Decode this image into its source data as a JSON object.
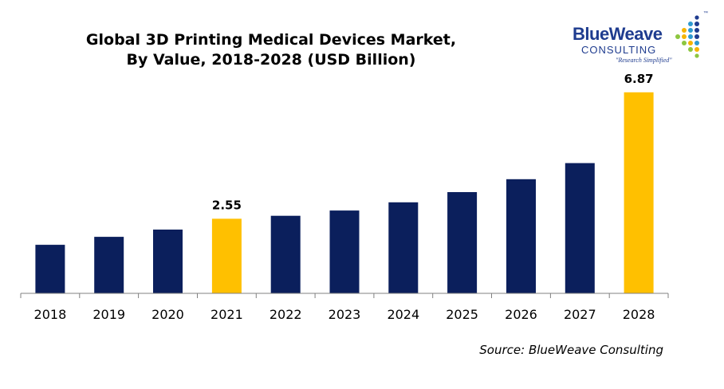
{
  "title_line1": "Global 3D Printing Medical Devices Market,",
  "title_line2": "By Value, 2018-2028 (USD Billion)",
  "logo": {
    "name": "BlueWeave",
    "sub": "CONSULTING",
    "tagline": "\"Research Simplified\"",
    "tm": "™"
  },
  "source": "Source: BlueWeave Consulting",
  "colors": {
    "bar": "#0b1f5c",
    "highlight": "#ffc000"
  },
  "chart_data": {
    "type": "bar",
    "categories": [
      "2018",
      "2019",
      "2020",
      "2021",
      "2022",
      "2023",
      "2024",
      "2025",
      "2026",
      "2027",
      "2028"
    ],
    "values": [
      1.66,
      1.93,
      2.18,
      2.55,
      2.65,
      2.83,
      3.11,
      3.46,
      3.9,
      4.45,
      6.87
    ],
    "data_labels": {
      "2021": "2.55",
      "2028": "6.87"
    },
    "highlight": [
      "2021",
      "2028"
    ],
    "ylim": [
      0,
      7.3
    ],
    "title": "Global 3D Printing Medical Devices Market, By Value, 2018-2028 (USD Billion)",
    "xlabel": "",
    "ylabel": "",
    "grid": false
  }
}
